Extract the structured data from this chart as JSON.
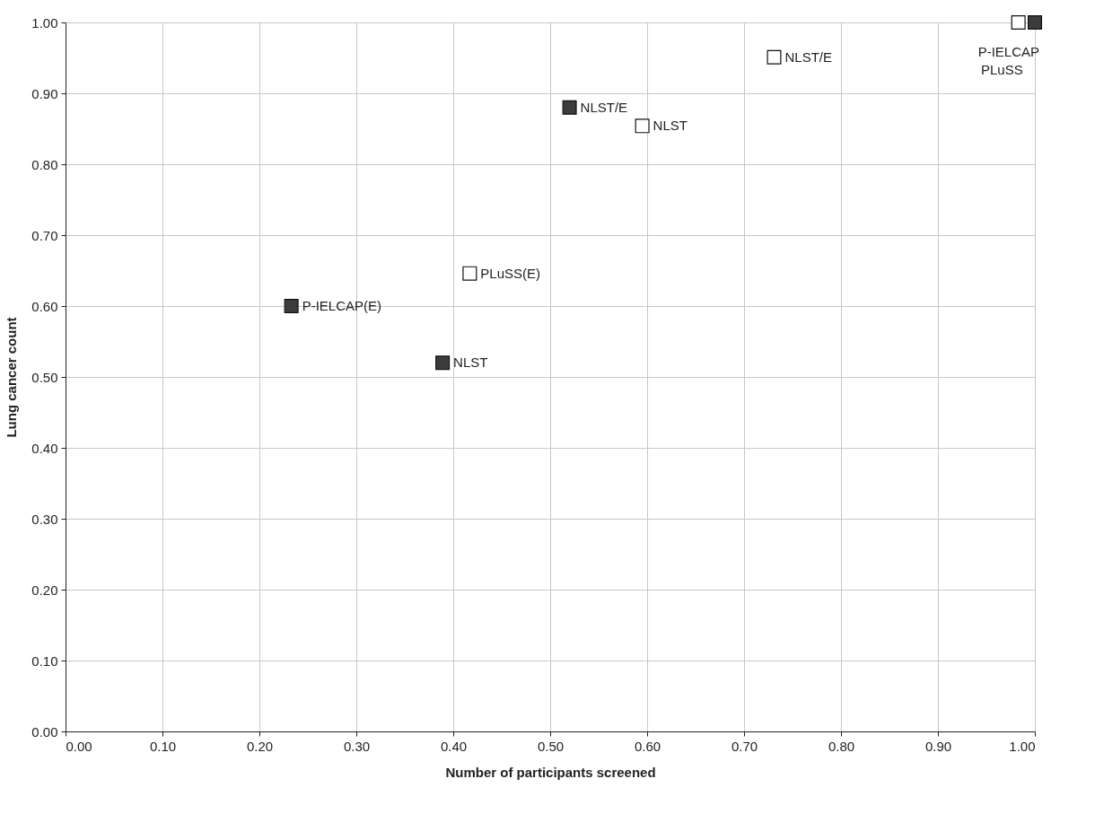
{
  "chart_data": {
    "type": "scatter",
    "xlabel": "Number of participants screened",
    "ylabel": "Lung cancer count",
    "series": [
      {
        "color": "#3c3c3c",
        "x": [
          0.233,
          0.389,
          0.52,
          1.0
        ],
        "values": [
          0.6,
          0.52,
          0.88,
          1.0
        ],
        "value_labels": [
          "P-IELCAP(E)",
          "NLST",
          "NLST/E",
          "P-IELCAP"
        ]
      },
      {
        "color": "#ffffff",
        "x": [
          0.417,
          0.595,
          0.731,
          0.983
        ],
        "values": [
          0.646,
          0.854,
          0.951,
          1.0
        ],
        "value_labels": [
          "PLuSS(E)",
          "NLST",
          "NLST/E",
          "PLuSS"
        ]
      }
    ],
    "xlim": [
      0,
      1
    ],
    "ylim": [
      0,
      1
    ],
    "xticks": [
      {
        "value": 0,
        "label": "0.00"
      },
      {
        "value": 0.1,
        "label": "0.10"
      },
      {
        "value": 0.2,
        "label": "0.20"
      },
      {
        "value": 0.3,
        "label": "0.30"
      },
      {
        "value": 0.4,
        "label": "0.40"
      },
      {
        "value": 0.5,
        "label": "0.50"
      },
      {
        "value": 0.6,
        "label": "0.60"
      },
      {
        "value": 0.7,
        "label": "0.70"
      },
      {
        "value": 0.8,
        "label": "0.80"
      },
      {
        "value": 0.9,
        "label": "0.90"
      },
      {
        "value": 1,
        "label": "1.00"
      }
    ],
    "yticks": [
      {
        "value": 0,
        "label": "0.00"
      },
      {
        "value": 0.1,
        "label": "0.10"
      },
      {
        "value": 0.2,
        "label": "0.20"
      },
      {
        "value": 0.3,
        "label": "0.30"
      },
      {
        "value": 0.4,
        "label": "0.40"
      },
      {
        "value": 0.5,
        "label": "0.50"
      },
      {
        "value": 0.6,
        "label": "0.60"
      },
      {
        "value": 0.7,
        "label": "0.70"
      },
      {
        "value": 0.8,
        "label": "0.80"
      },
      {
        "value": 0.9,
        "label": "0.90"
      },
      {
        "value": 1,
        "label": "1.00"
      }
    ],
    "grid": true,
    "marker": "square"
  }
}
